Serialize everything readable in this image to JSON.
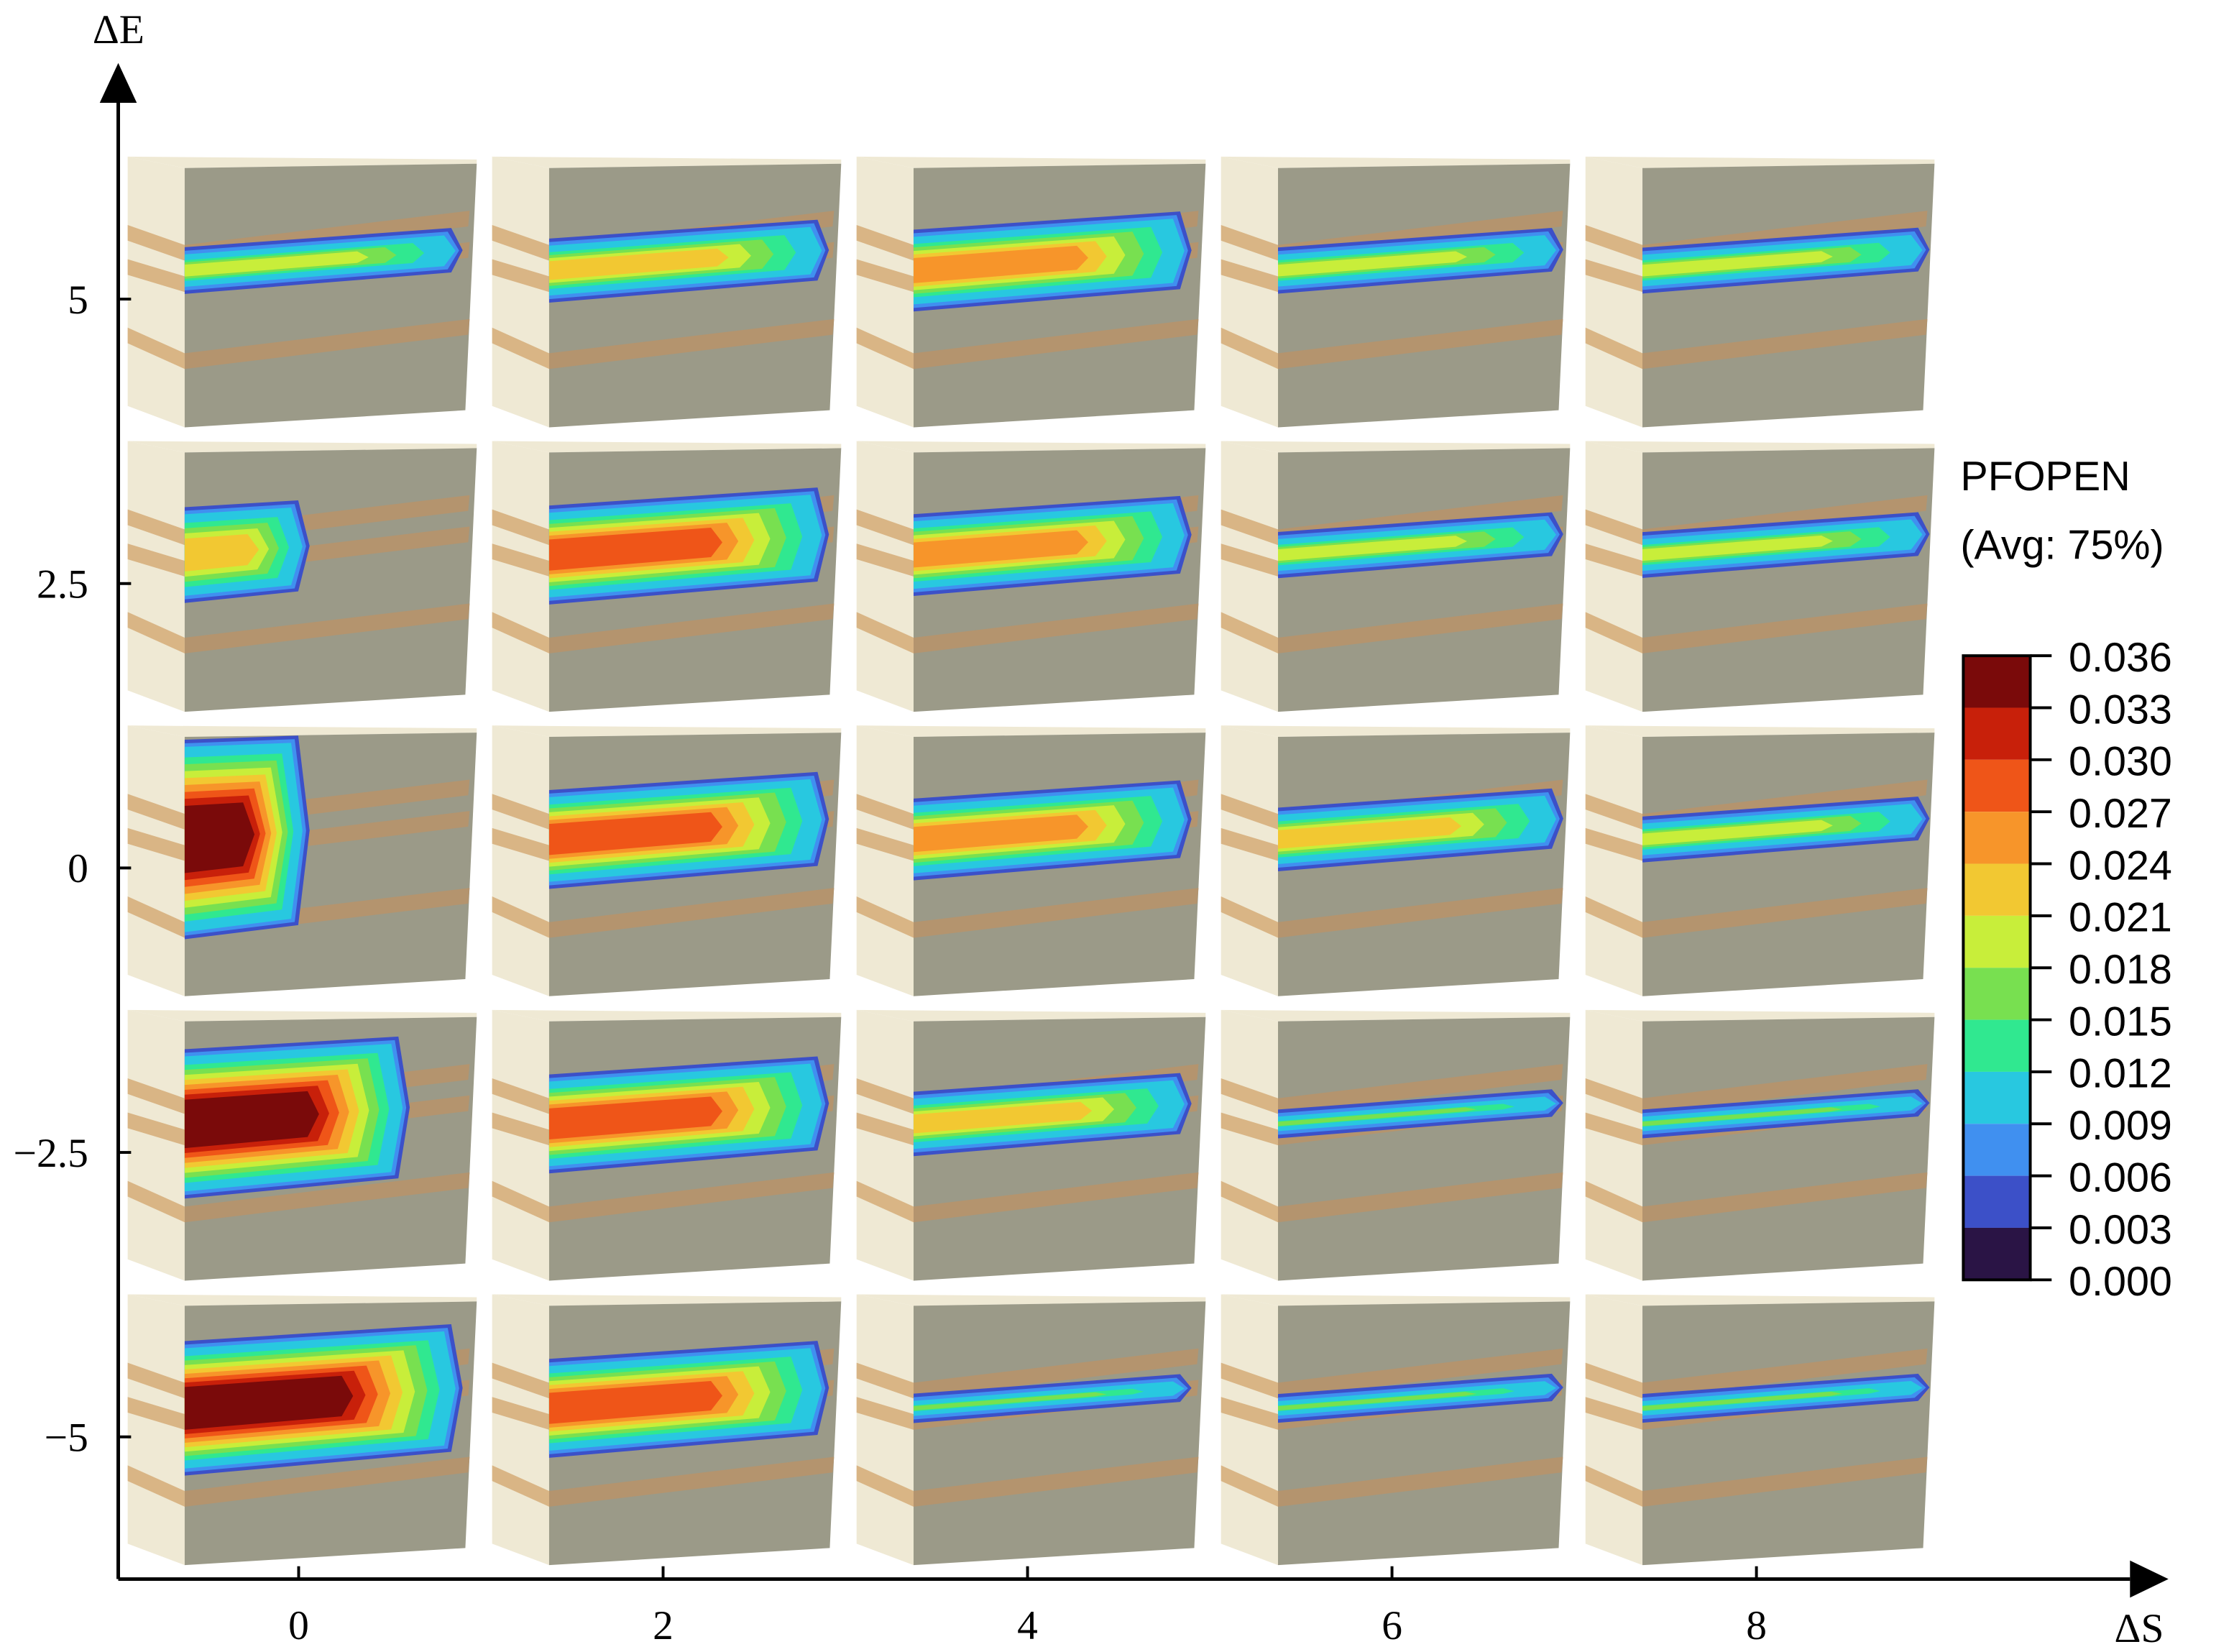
{
  "chart_data": {
    "type": "grid",
    "x_label": "ΔS",
    "y_label": "ΔE",
    "xlim": [
      -0.99,
      10.05
    ],
    "ylim": [
      -6.25,
      6.75
    ],
    "xticks": [
      0,
      2,
      4,
      6,
      8
    ],
    "yticks": [
      5,
      2.5,
      0,
      {
        "value": -2.5,
        "label": "−2.5"
      },
      {
        "value": -5,
        "label": "−5"
      }
    ],
    "colorbar": {
      "title": "PFOPEN",
      "subtitle": "(Avg: 75%)",
      "ticks": [
        0.036,
        0.033,
        {
          "value": 0.03,
          "label": "0.030"
        },
        0.027,
        0.024,
        0.021,
        0.018,
        0.015,
        0.012,
        0.009,
        0.006,
        0.003,
        {
          "value": 0,
          "label": "0.000"
        }
      ],
      "colors": [
        "#7a0a0a",
        "#c8200a",
        "#ef5518",
        "#f7952a",
        "#f2c832",
        "#c8ee3a",
        "#78e050",
        "#30e890",
        "#28c8e0",
        "#4090f0",
        "#3c50c8",
        "#2a1445"
      ]
    },
    "panels": [
      {
        "x": 0,
        "y": 5,
        "peak": 0.018,
        "tip": 0.9
      },
      {
        "x": 2,
        "y": 5,
        "peak": 0.021,
        "tip": 2.91
      },
      {
        "x": 4,
        "y": 5,
        "peak": 0.024,
        "tip": 4.9
      },
      {
        "x": 6,
        "y": 5,
        "peak": 0.018,
        "tip": 6.94
      },
      {
        "x": 8,
        "y": 5,
        "peak": 0.018,
        "tip": 8.95
      },
      {
        "x": 0,
        "y": 2.5,
        "peak": 0.021,
        "tip": 0.06
      },
      {
        "x": 2,
        "y": 2.5,
        "peak": 0.027,
        "tip": 2.91
      },
      {
        "x": 4,
        "y": 2.5,
        "peak": 0.024,
        "tip": 4.9
      },
      {
        "x": 6,
        "y": 2.5,
        "peak": 0.018,
        "tip": 6.94
      },
      {
        "x": 8,
        "y": 2.5,
        "peak": 0.018,
        "tip": 8.95
      },
      {
        "x": 0,
        "y": 0,
        "peak": 0.033,
        "tip": 0.06
      },
      {
        "x": 2,
        "y": 0,
        "peak": 0.027,
        "tip": 2.91
      },
      {
        "x": 4,
        "y": 0,
        "peak": 0.024,
        "tip": 4.9
      },
      {
        "x": 6,
        "y": 0,
        "peak": 0.021,
        "tip": 6.94
      },
      {
        "x": 8,
        "y": 0,
        "peak": 0.018,
        "tip": 8.95
      },
      {
        "x": 0,
        "y": -2.5,
        "peak": 0.033,
        "tip": 0.61
      },
      {
        "x": 2,
        "y": -2.5,
        "peak": 0.027,
        "tip": 2.91
      },
      {
        "x": 4,
        "y": -2.5,
        "peak": 0.021,
        "tip": 4.9
      },
      {
        "x": 6,
        "y": -2.5,
        "peak": 0.015,
        "tip": 6.94
      },
      {
        "x": 8,
        "y": -2.5,
        "peak": 0.015,
        "tip": 8.95
      },
      {
        "x": 0,
        "y": -5,
        "peak": 0.033,
        "tip": 0.9
      },
      {
        "x": 2,
        "y": -5,
        "peak": 0.027,
        "tip": 2.91
      },
      {
        "x": 4,
        "y": -5,
        "peak": 0.015,
        "tip": 4.9
      },
      {
        "x": 6,
        "y": -5,
        "peak": 0.015,
        "tip": 6.94
      },
      {
        "x": 8,
        "y": -5,
        "peak": 0.015,
        "tip": 8.95
      }
    ]
  }
}
